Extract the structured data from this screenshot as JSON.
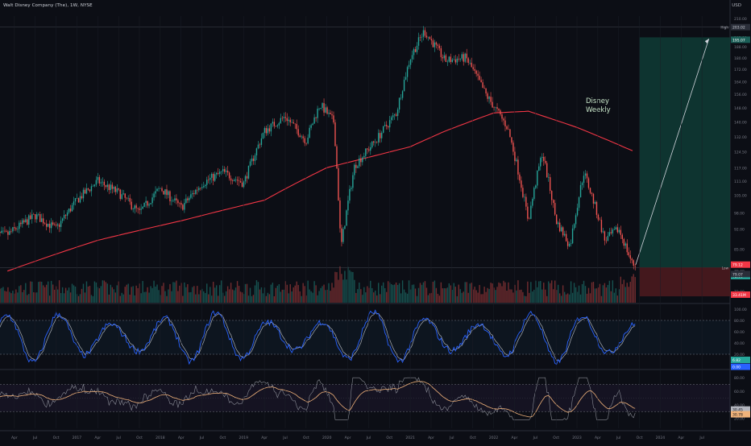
{
  "header": {
    "symbol_line": "Walt Disney Company (The), 1W, NYSE",
    "currency": "USD"
  },
  "annotation": {
    "line1": "Disney",
    "line2": "Weekly"
  },
  "price_axis": {
    "ticks": [
      "210.00",
      "202.00",
      "195.00",
      "188.00",
      "180.00",
      "172.00",
      "164.00",
      "156.00",
      "148.00",
      "140.00",
      "132.00",
      "124.50",
      "117.00",
      "111.00",
      "105.00",
      "98.00",
      "92.00",
      "85.00",
      "78.00",
      "72.00"
    ],
    "high_label": "High",
    "high_value": "203.02",
    "high_badge": "195.07",
    "low_label": "Low",
    "low_value": "79.07",
    "last_badge": "79.12",
    "last_small": "72.00",
    "vol_badge": "33.41M"
  },
  "stoch_axis": {
    "ticks": [
      "100.00",
      "80.00",
      "60.00",
      "40.00",
      "20.00"
    ],
    "badge1": "6.82",
    "badge2": "0.00"
  },
  "rsi_axis": {
    "ticks": [
      "80.00",
      "60.00",
      "40.00",
      "20.00"
    ],
    "badge1": "30.45",
    "badge2": "30.78"
  },
  "time_axis": {
    "labels": [
      "Apr",
      "Jul",
      "Oct",
      "2017",
      "Apr",
      "Jul",
      "Oct",
      "2018",
      "Apr",
      "Jul",
      "Oct",
      "2019",
      "Apr",
      "Jul",
      "Oct",
      "2020",
      "Apr",
      "Jul",
      "Oct",
      "2021",
      "Apr",
      "Jul",
      "Oct",
      "2022",
      "Apr",
      "Jul",
      "Oct",
      "2023",
      "Apr",
      "Jul",
      "Oct",
      "2024",
      "Apr",
      "Jul"
    ]
  },
  "colors": {
    "up": "#26a69a",
    "down": "#ef5350",
    "ma": "#f23645",
    "stoch_k": "#2962ff",
    "stoch_d": "#d1d4dc",
    "rsi": "#b2b5be",
    "rsi_ma": "#f0b27a",
    "target": "#0f3b35",
    "stop": "#4a1a1e"
  },
  "chart_data": {
    "type": "candlestick",
    "ylim": [
      72,
      210
    ],
    "price_path": [
      [
        "2016-03",
        90
      ],
      [
        "2016-07",
        97
      ],
      [
        "2016-10",
        92
      ],
      [
        "2017-01",
        103
      ],
      [
        "2017-04",
        111
      ],
      [
        "2017-07",
        106
      ],
      [
        "2017-10",
        98
      ],
      [
        "2018-01",
        108
      ],
      [
        "2018-04",
        100
      ],
      [
        "2018-07",
        110
      ],
      [
        "2018-10",
        115
      ],
      [
        "2019-01",
        110
      ],
      [
        "2019-04",
        135
      ],
      [
        "2019-07",
        143
      ],
      [
        "2019-10",
        130
      ],
      [
        "2019-12",
        150
      ],
      [
        "2020-02",
        140
      ],
      [
        "2020-03",
        85
      ],
      [
        "2020-05",
        118
      ],
      [
        "2020-08",
        130
      ],
      [
        "2020-11",
        145
      ],
      [
        "2021-01",
        180
      ],
      [
        "2021-03",
        200
      ],
      [
        "2021-06",
        178
      ],
      [
        "2021-09",
        180
      ],
      [
        "2021-12",
        155
      ],
      [
        "2022-03",
        137
      ],
      [
        "2022-06",
        95
      ],
      [
        "2022-08",
        124
      ],
      [
        "2022-10",
        95
      ],
      [
        "2022-12",
        86
      ],
      [
        "2023-02",
        115
      ],
      [
        "2023-05",
        88
      ],
      [
        "2023-07",
        92
      ],
      [
        "2023-09",
        80
      ]
    ],
    "ma_path": [
      [
        "2016-03",
        78
      ],
      [
        "2017-04",
        88
      ],
      [
        "2018-04",
        95
      ],
      [
        "2019-04",
        103
      ],
      [
        "2020-01",
        117
      ],
      [
        "2020-06",
        121
      ],
      [
        "2021-01",
        127
      ],
      [
        "2021-06",
        135
      ],
      [
        "2022-01",
        145
      ],
      [
        "2022-06",
        146
      ],
      [
        "2023-01",
        137
      ],
      [
        "2023-09",
        125
      ]
    ],
    "high": 203.02,
    "low": 79.07,
    "target_zone": [
      79.12,
      195.07
    ],
    "stop_zone": [
      72.0,
      79.12
    ]
  }
}
